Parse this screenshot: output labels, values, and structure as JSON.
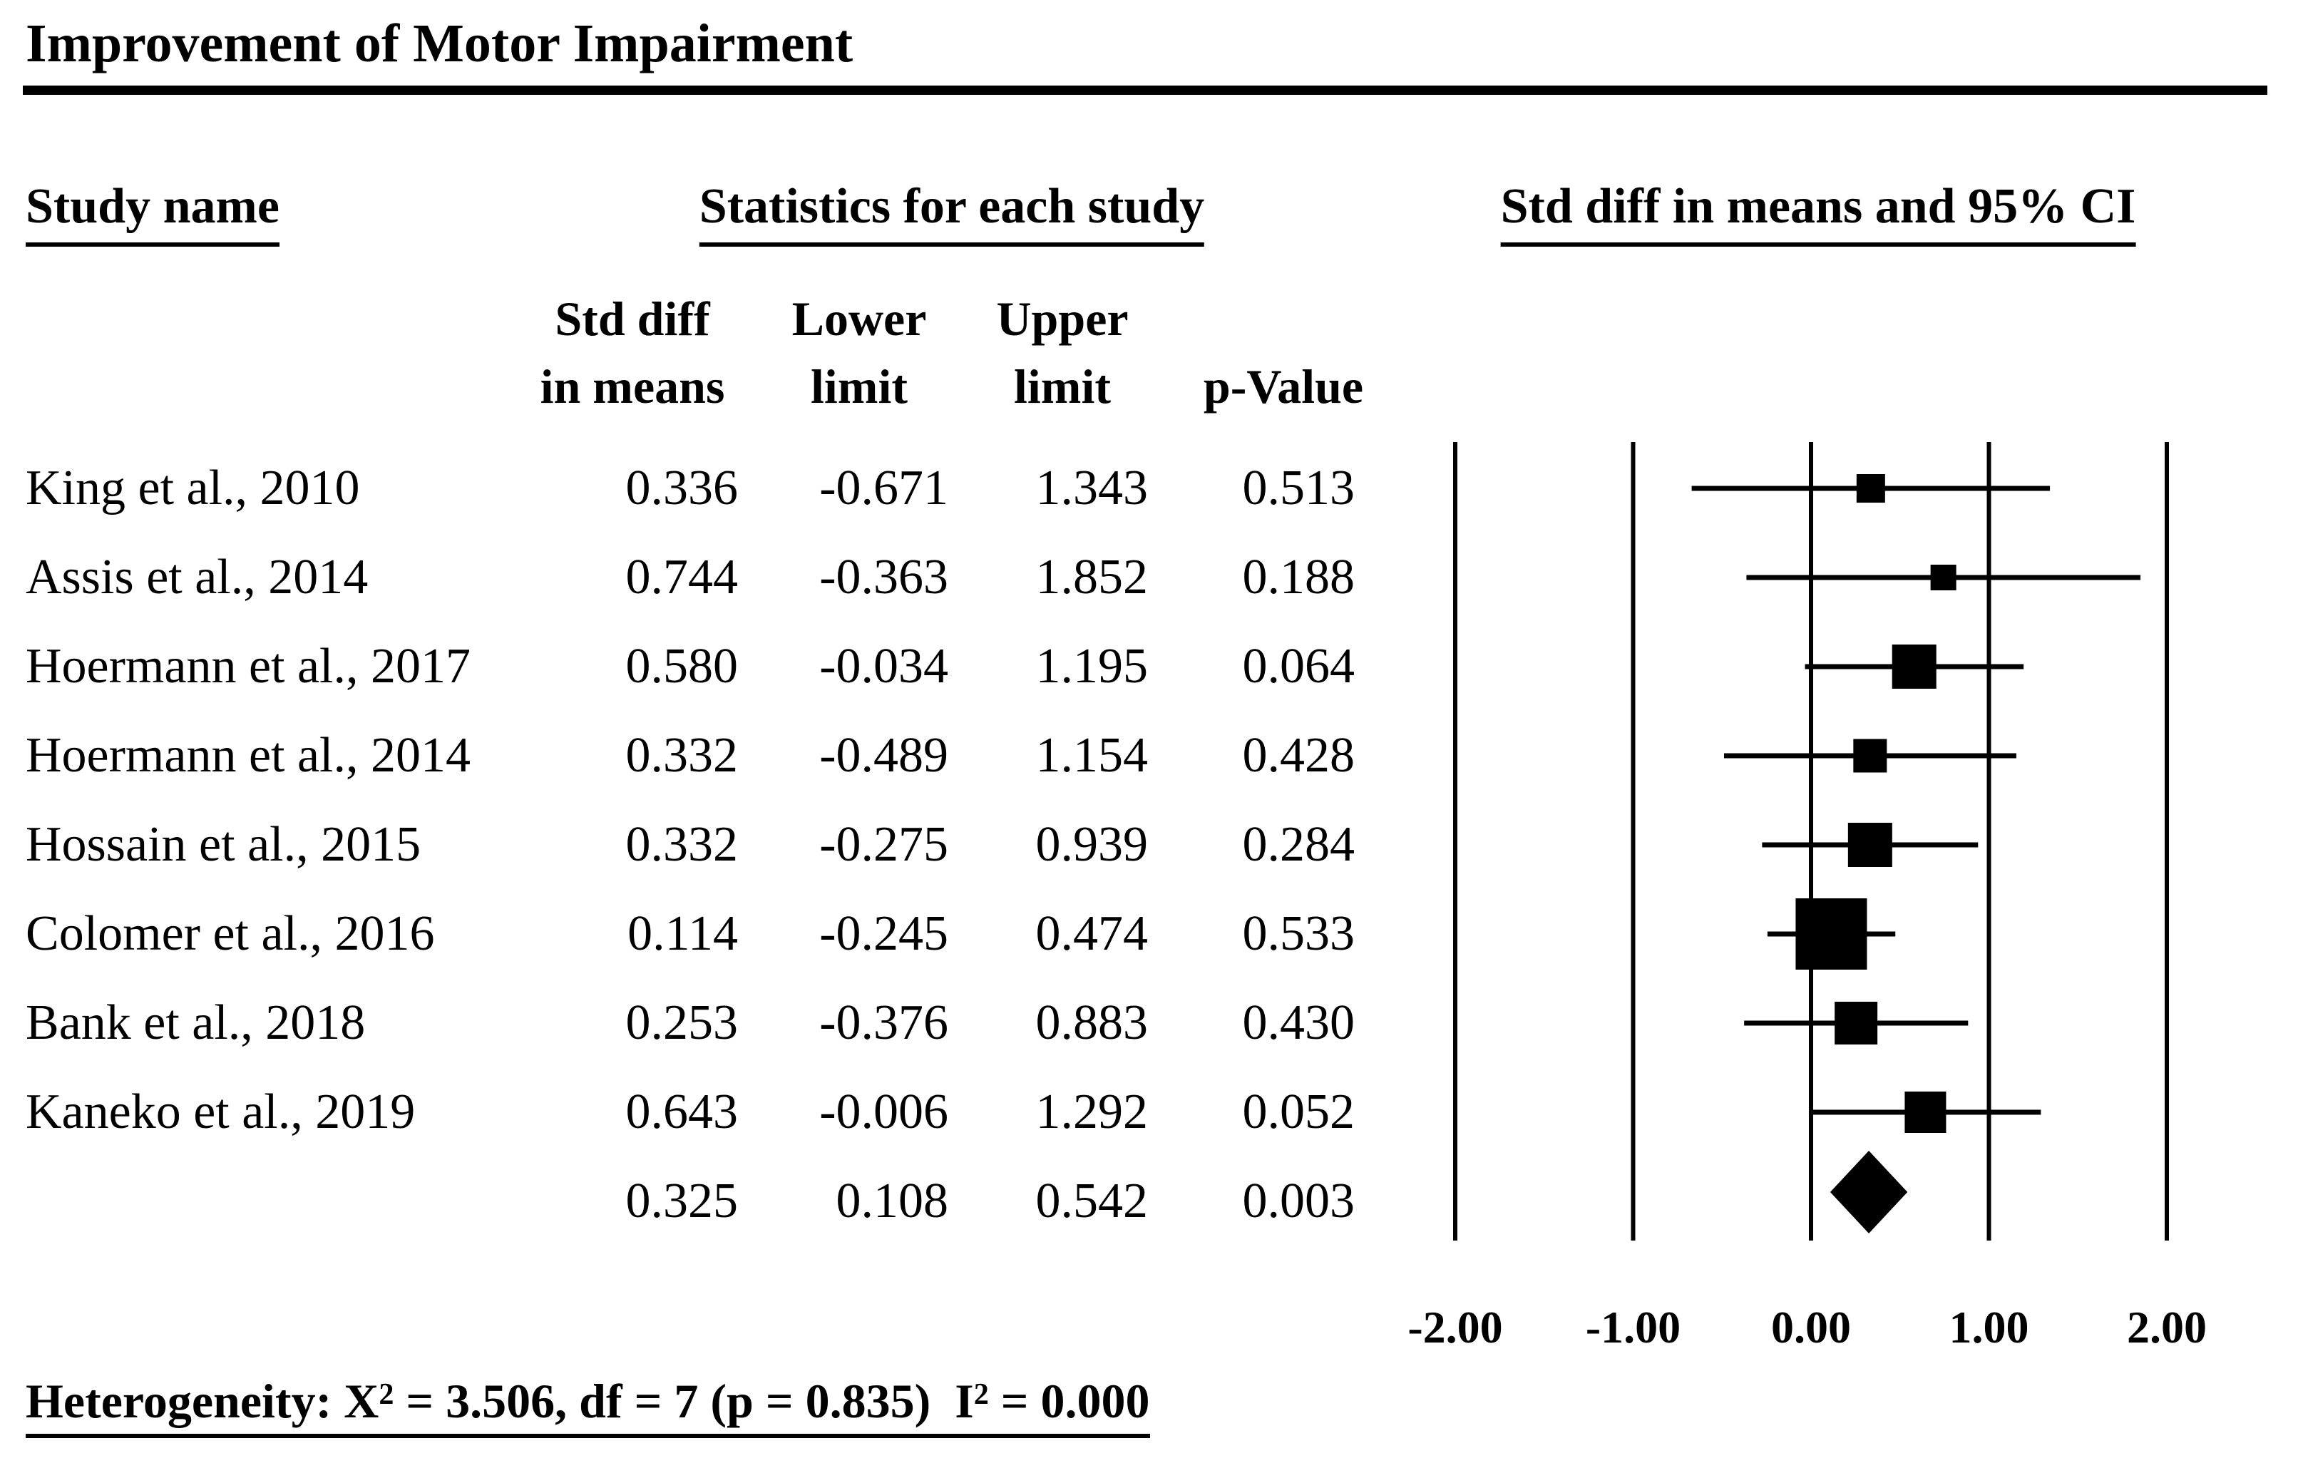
{
  "figure": {
    "title": "Improvement of Motor Impairment",
    "background_color": "#ffffff",
    "ink_color": "#000000"
  },
  "headers": {
    "study_name": "Study name",
    "statistics": "Statistics for each study",
    "ci_plot": "Std diff in means and 95% CI"
  },
  "stat_columns": [
    {
      "line1": "Std diff",
      "line2": "in means"
    },
    {
      "line1": "Lower",
      "line2": "limit"
    },
    {
      "line1": "Upper",
      "line2": "limit"
    },
    {
      "line1": "",
      "line2": "p-Value"
    }
  ],
  "chart_data": {
    "type": "forest",
    "title": "Improvement of Motor Impairment",
    "x_axis": {
      "range": [
        -2,
        2
      ],
      "grid": "vertical-lines-at-ticks",
      "ticks": [
        {
          "label": "-2.00",
          "value": -2
        },
        {
          "label": "-1.00",
          "value": -1
        },
        {
          "label": "0.00",
          "value": 0
        },
        {
          "label": "1.00",
          "value": 1
        },
        {
          "label": "2.00",
          "value": 2
        }
      ]
    },
    "studies": [
      {
        "name": "King et al., 2010",
        "std_diff": "0.336",
        "lower": "-0.671",
        "upper": "1.343",
        "p_value": "0.513",
        "marker_size": 40
      },
      {
        "name": "Assis et al., 2014",
        "std_diff": "0.744",
        "lower": "-0.363",
        "upper": "1.852",
        "p_value": "0.188",
        "marker_size": 36
      },
      {
        "name": "Hoermann et al., 2017",
        "std_diff": "0.580",
        "lower": "-0.034",
        "upper": "1.195",
        "p_value": "0.064",
        "marker_size": 62
      },
      {
        "name": "Hoermann et al., 2014",
        "std_diff": "0.332",
        "lower": "-0.489",
        "upper": "1.154",
        "p_value": "0.428",
        "marker_size": 47
      },
      {
        "name": "Hossain et al., 2015",
        "std_diff": "0.332",
        "lower": "-0.275",
        "upper": "0.939",
        "p_value": "0.284",
        "marker_size": 62
      },
      {
        "name": "Colomer et al., 2016",
        "std_diff": "0.114",
        "lower": "-0.245",
        "upper": "0.474",
        "p_value": "0.533",
        "marker_size": 100
      },
      {
        "name": "Bank et al., 2018",
        "std_diff": "0.253",
        "lower": "-0.376",
        "upper": "0.883",
        "p_value": "0.430",
        "marker_size": 60
      },
      {
        "name": "Kaneko et al., 2019",
        "std_diff": "0.643",
        "lower": "-0.006",
        "upper": "1.292",
        "p_value": "0.052",
        "marker_size": 58
      }
    ],
    "overall": {
      "std_diff": "0.325",
      "lower": "0.108",
      "upper": "0.542",
      "p_value": "0.003",
      "marker": "diamond"
    }
  },
  "heterogeneity": {
    "prefix": "Heterogeneity: X",
    "sup1": "2",
    "mid": " = 3.506, df = 7 (p = 0.835)  I",
    "sup2": "2",
    "suffix": " = 0.000"
  }
}
